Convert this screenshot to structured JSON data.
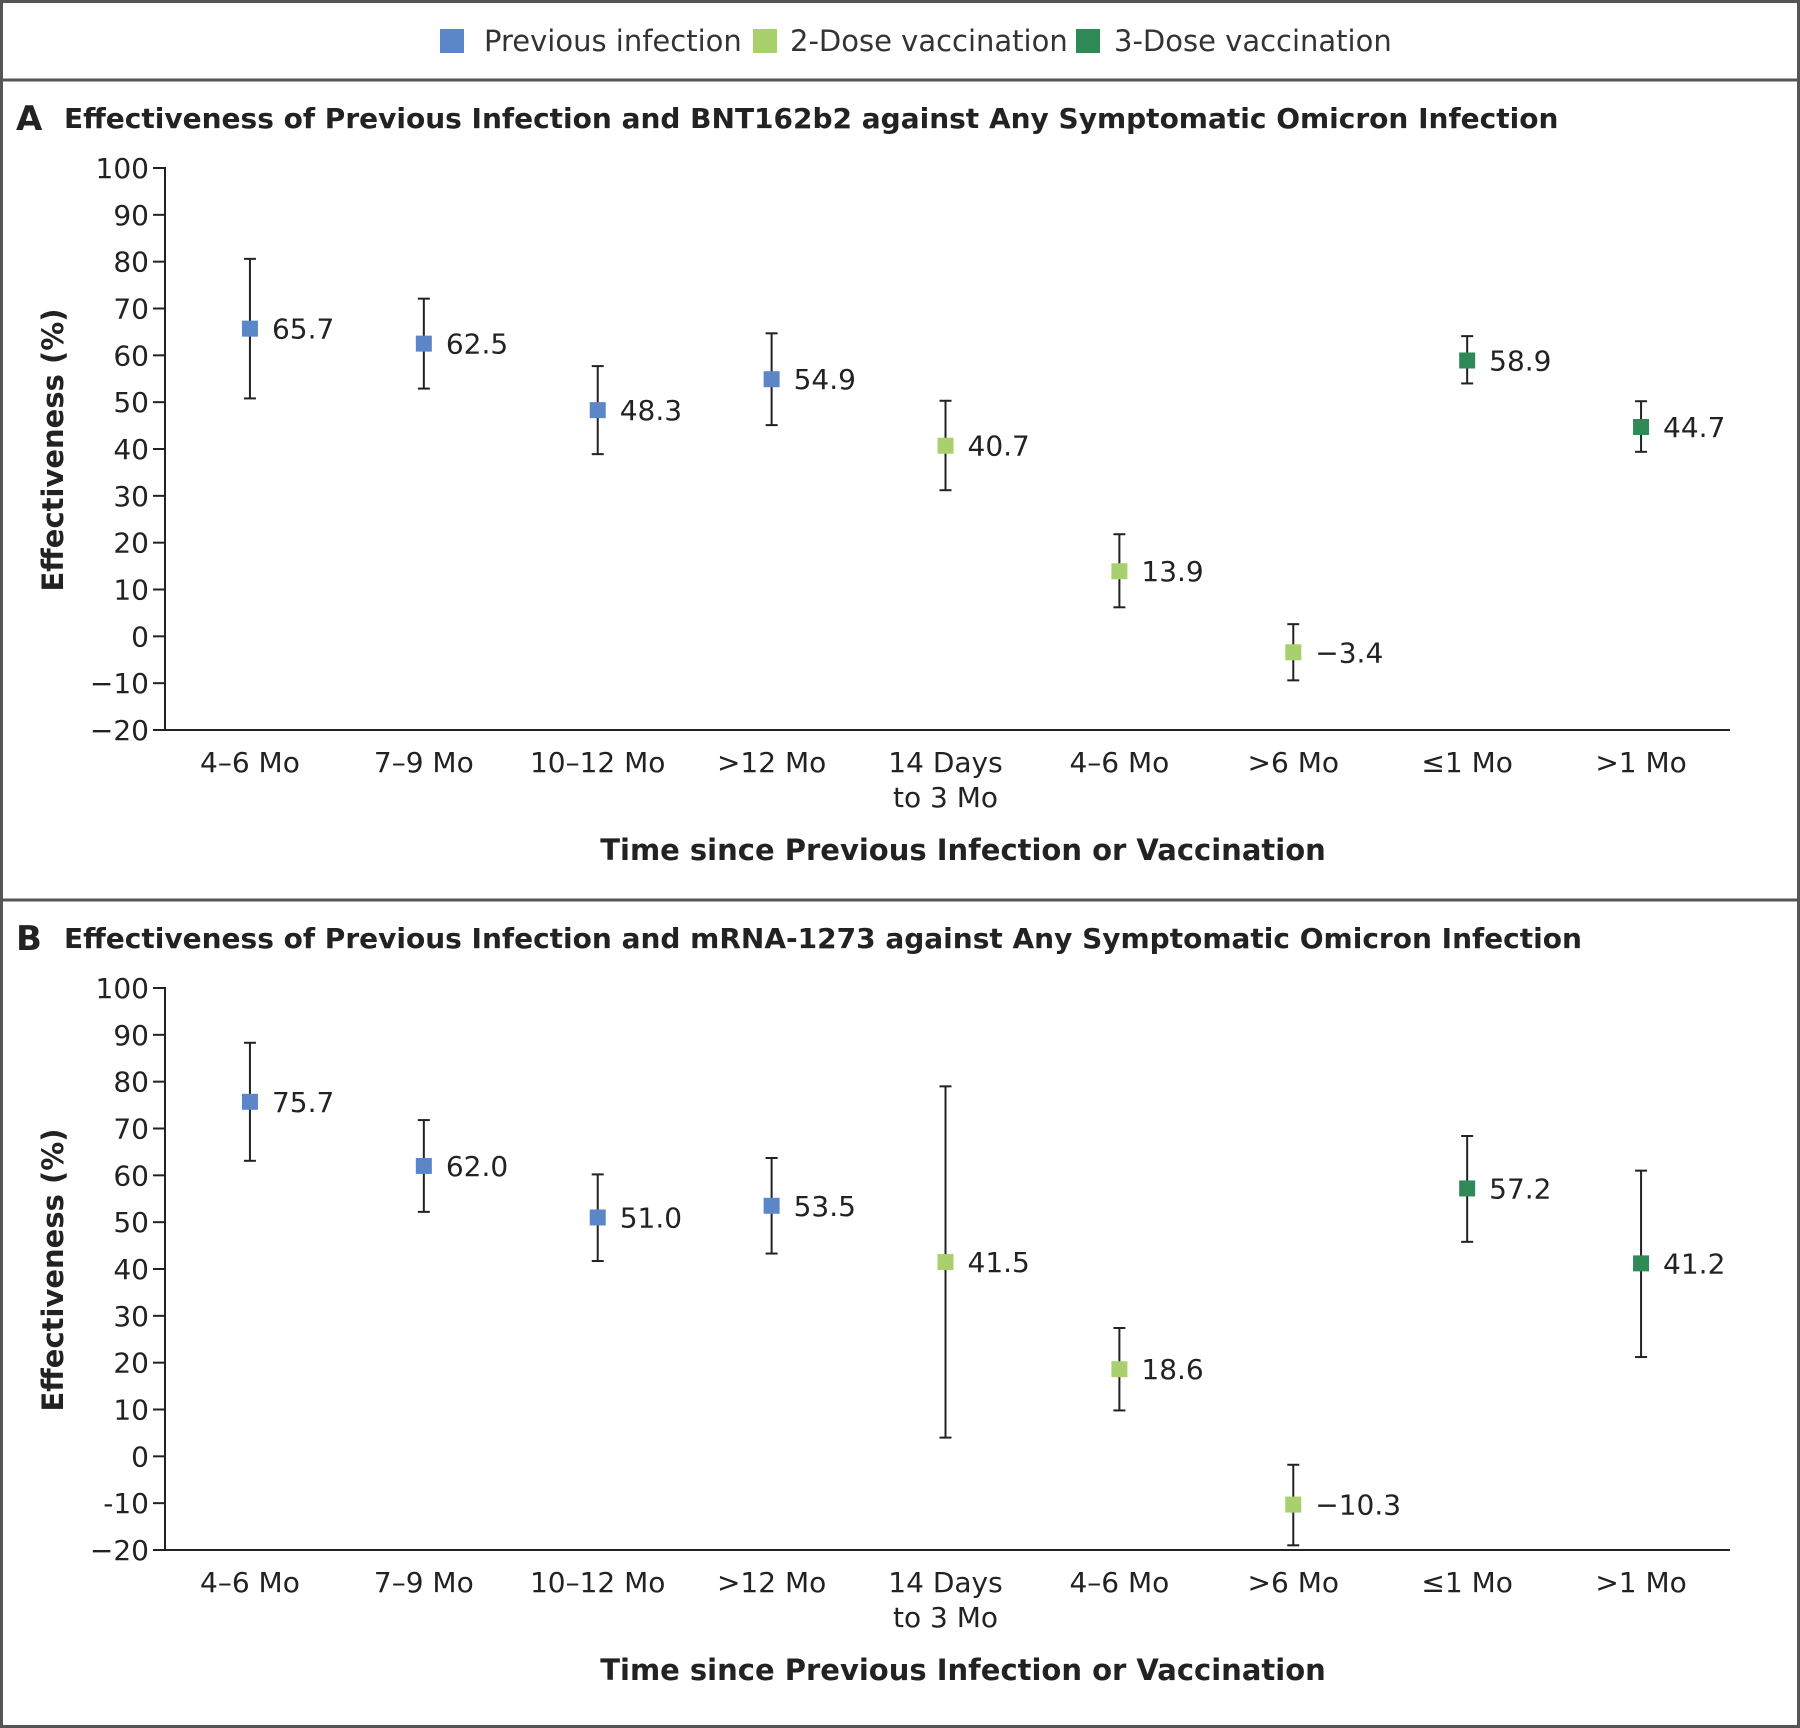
{
  "legend": [
    {
      "label": "Previous infection",
      "color": "#5b86c8"
    },
    {
      "label": "2-Dose vaccination",
      "color": "#a8d06c"
    },
    {
      "label": "3-Dose vaccination",
      "color": "#2e8a56"
    }
  ],
  "chart_data": [
    {
      "type": "scatter",
      "panel_letter": "A",
      "title": "Effectiveness of Previous Infection and BNT162b2 against Any Symptomatic Omicron Infection",
      "xlabel": "Time since Previous Infection or Vaccination",
      "ylabel": "Effectiveness (%)",
      "ylim": [
        -20,
        100
      ],
      "yticks": [
        "100",
        "90",
        "80",
        "70",
        "60",
        "50",
        "40",
        "30",
        "20",
        "10",
        "0",
        "−10",
        "−20"
      ],
      "categories": [
        [
          "4–6 Mo"
        ],
        [
          "7–9 Mo"
        ],
        [
          "10–12 Mo"
        ],
        [
          ">12 Mo"
        ],
        [
          "14 Days",
          "to 3 Mo"
        ],
        [
          "4–6 Mo"
        ],
        [
          ">6 Mo"
        ],
        [
          "≤1 Mo"
        ],
        [
          ">1 Mo"
        ]
      ],
      "points": [
        {
          "group": 0,
          "value": 65.7,
          "label": "65.7",
          "low": 50.8,
          "high": 80.6
        },
        {
          "group": 0,
          "value": 62.5,
          "label": "62.5",
          "low": 52.9,
          "high": 72.1
        },
        {
          "group": 0,
          "value": 48.3,
          "label": "48.3",
          "low": 38.9,
          "high": 57.7
        },
        {
          "group": 0,
          "value": 54.9,
          "label": "54.9",
          "low": 45.1,
          "high": 64.7
        },
        {
          "group": 1,
          "value": 40.7,
          "label": "40.7",
          "low": 31.2,
          "high": 50.3
        },
        {
          "group": 1,
          "value": 13.9,
          "label": "13.9",
          "low": 6.2,
          "high": 21.8
        },
        {
          "group": 1,
          "value": -3.4,
          "label": "−3.4",
          "low": -9.4,
          "high": 2.6
        },
        {
          "group": 2,
          "value": 58.9,
          "label": "58.9",
          "low": 54.0,
          "high": 64.1
        },
        {
          "group": 2,
          "value": 44.7,
          "label": "44.7",
          "low": 39.4,
          "high": 50.2
        }
      ]
    },
    {
      "type": "scatter",
      "panel_letter": "B",
      "title": "Effectiveness of Previous Infection and mRNA-1273 against Any Symptomatic Omicron Infection",
      "xlabel": "Time since Previous Infection or Vaccination",
      "ylabel": "Effectiveness (%)",
      "ylim": [
        -20,
        100
      ],
      "yticks": [
        "100",
        "90",
        "80",
        "70",
        "60",
        "50",
        "40",
        "30",
        "20",
        "10",
        "0",
        "-10",
        "−20"
      ],
      "categories": [
        [
          "4–6 Mo"
        ],
        [
          "7–9 Mo"
        ],
        [
          "10–12 Mo"
        ],
        [
          ">12 Mo"
        ],
        [
          "14 Days",
          "to 3 Mo"
        ],
        [
          "4–6 Mo"
        ],
        [
          ">6 Mo"
        ],
        [
          "≤1 Mo"
        ],
        [
          ">1 Mo"
        ]
      ],
      "points": [
        {
          "group": 0,
          "value": 75.7,
          "label": "75.7",
          "low": 63.1,
          "high": 88.3
        },
        {
          "group": 0,
          "value": 62.0,
          "label": "62.0",
          "low": 52.2,
          "high": 71.8
        },
        {
          "group": 0,
          "value": 51.0,
          "label": "51.0",
          "low": 41.7,
          "high": 60.2
        },
        {
          "group": 0,
          "value": 53.5,
          "label": "53.5",
          "low": 43.3,
          "high": 63.7
        },
        {
          "group": 1,
          "value": 41.5,
          "label": "41.5",
          "low": 4.0,
          "high": 79.0
        },
        {
          "group": 1,
          "value": 18.6,
          "label": "18.6",
          "low": 9.8,
          "high": 27.4
        },
        {
          "group": 1,
          "value": -10.3,
          "label": "−10.3",
          "low": -19.0,
          "high": -1.8
        },
        {
          "group": 2,
          "value": 57.2,
          "label": "57.2",
          "low": 45.8,
          "high": 68.4
        },
        {
          "group": 2,
          "value": 41.2,
          "label": "41.2",
          "low": 21.2,
          "high": 61.0
        }
      ]
    }
  ]
}
